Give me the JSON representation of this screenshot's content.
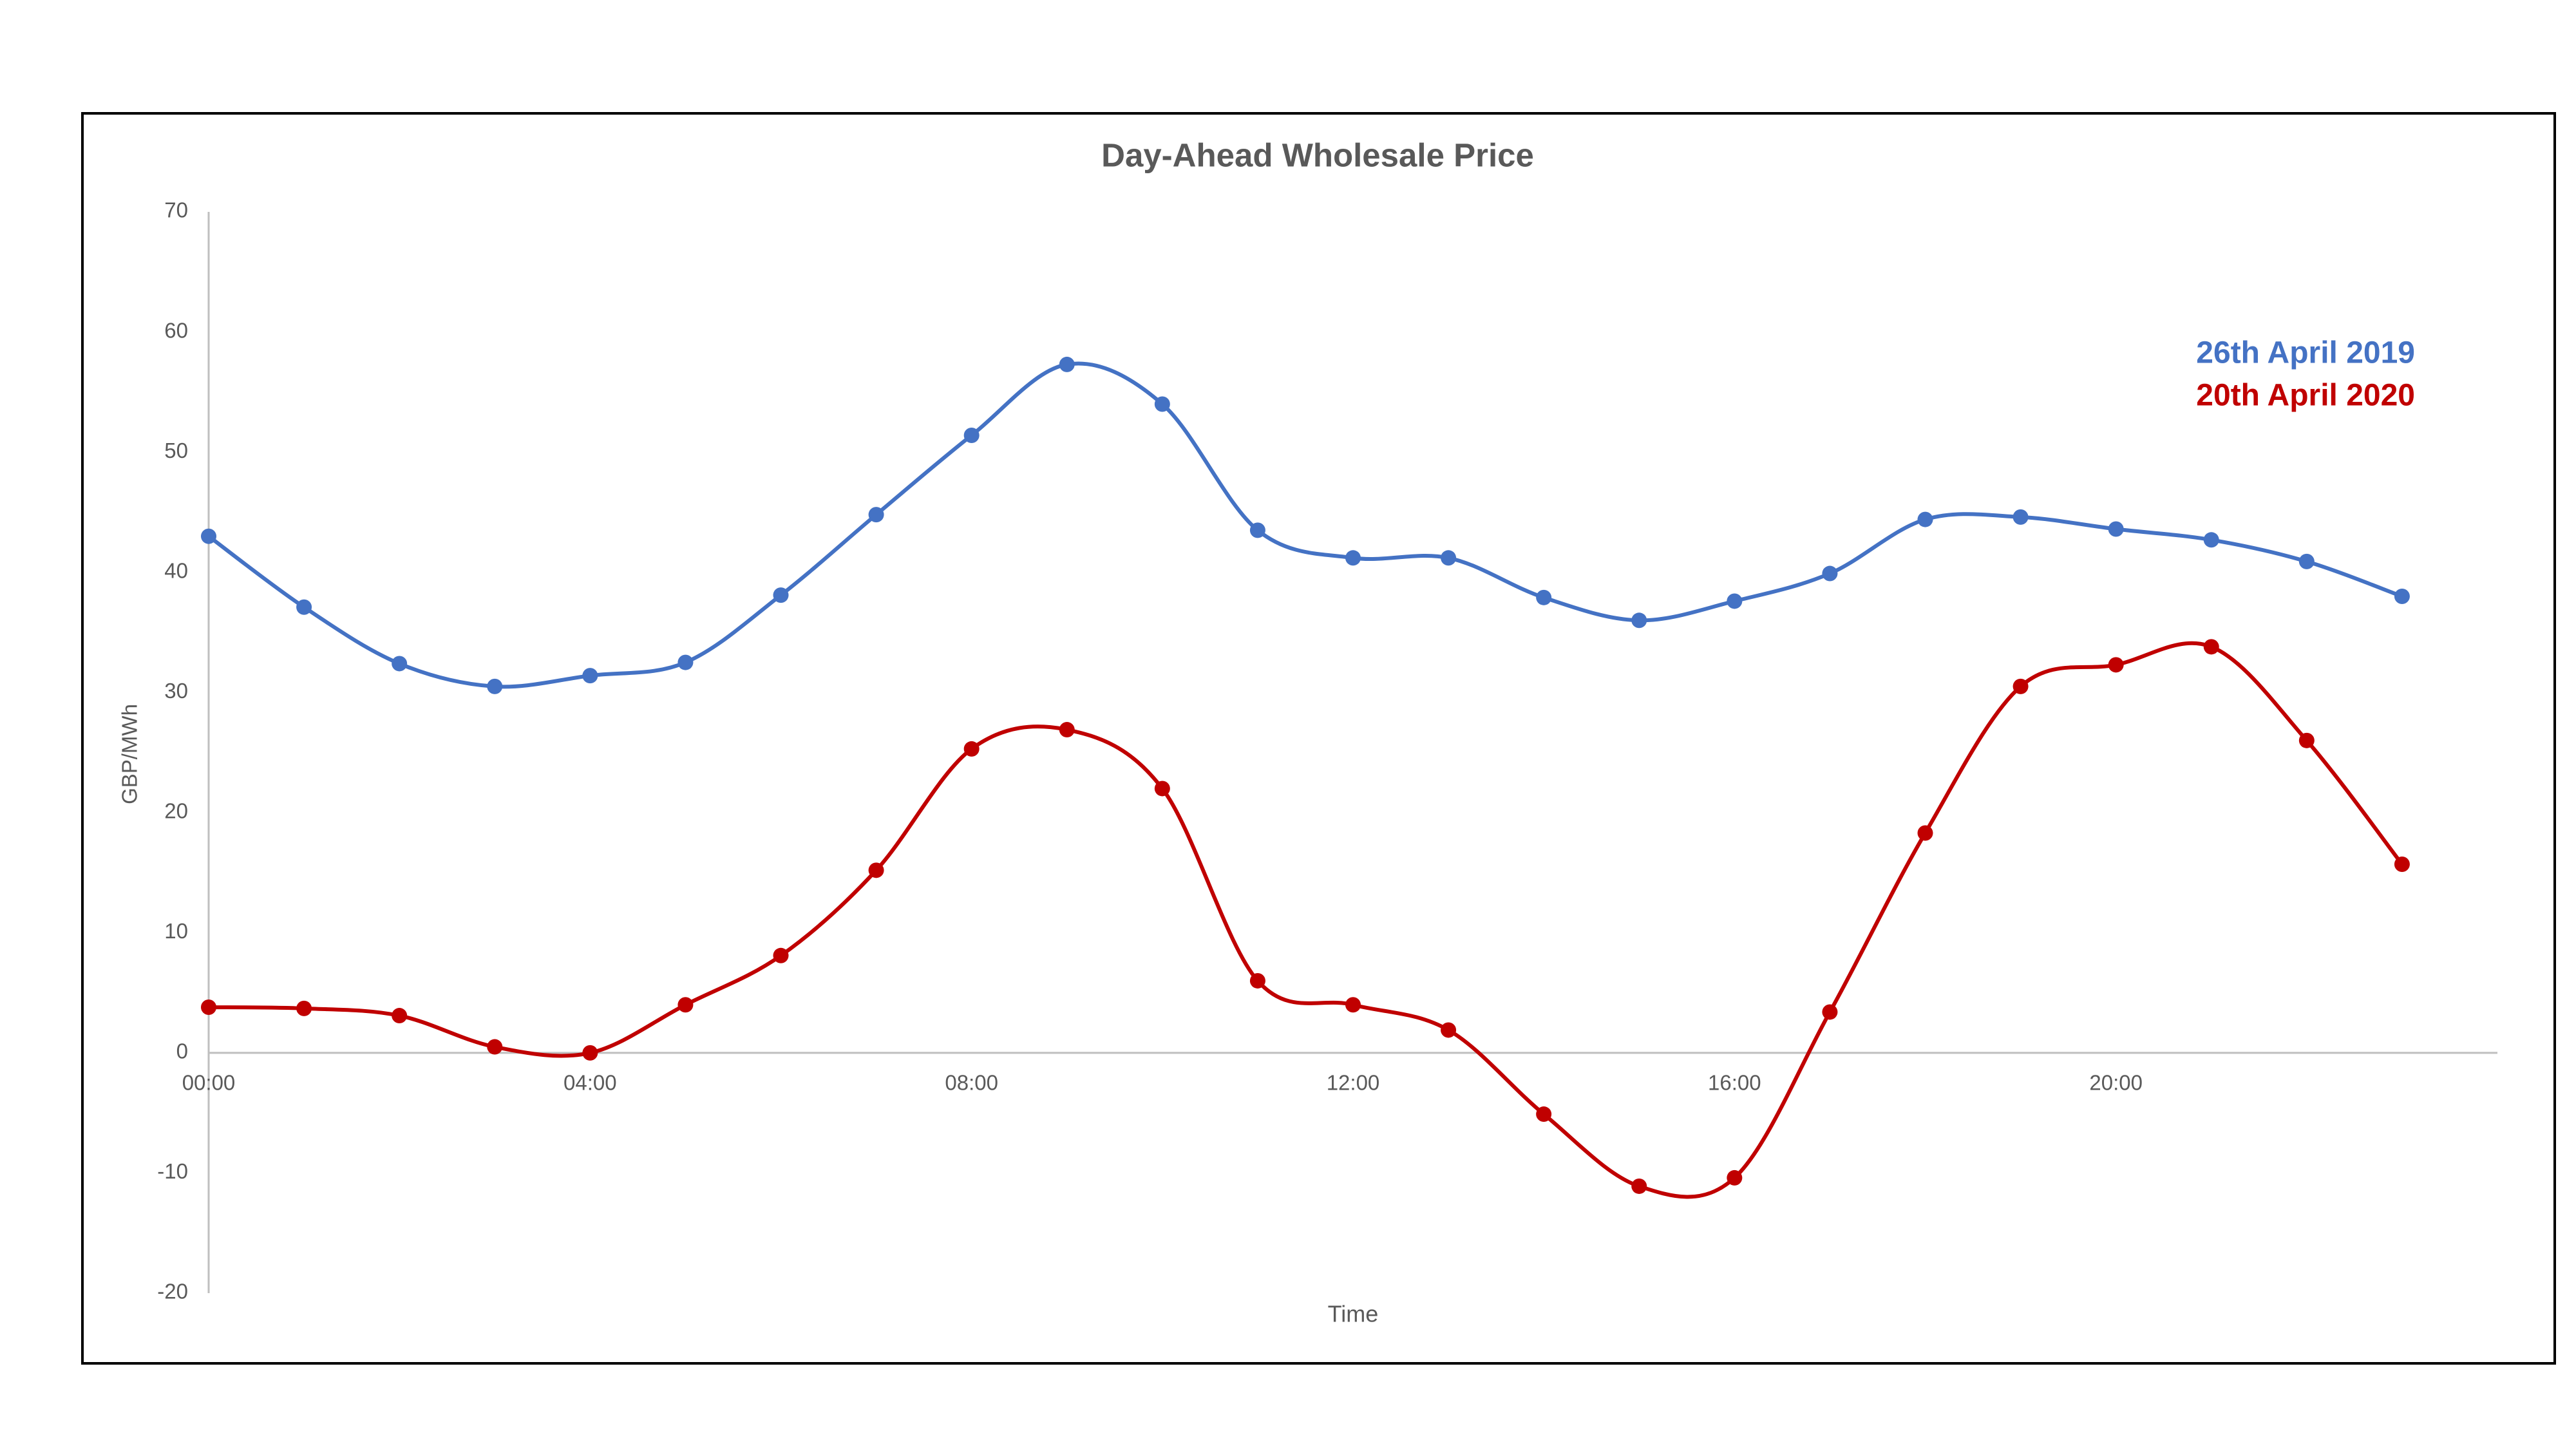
{
  "chart_data": {
    "type": "line",
    "title": "Day-Ahead Wholesale Price",
    "x_label": "Time",
    "y_label": "GBP/MWh",
    "x": [
      0,
      1,
      2,
      3,
      4,
      5,
      6,
      7,
      8,
      9,
      10,
      11,
      12,
      13,
      14,
      15,
      16,
      17,
      18,
      19,
      20,
      21,
      22,
      23
    ],
    "xlim": [
      0,
      24
    ],
    "xticks": [
      {
        "value": 0,
        "label": "00:00"
      },
      {
        "value": 4,
        "label": "04:00"
      },
      {
        "value": 8,
        "label": "08:00"
      },
      {
        "value": 12,
        "label": "12:00"
      },
      {
        "value": 16,
        "label": "16:00"
      },
      {
        "value": 20,
        "label": "20:00"
      }
    ],
    "ylim": [
      -20,
      70
    ],
    "yticks": [
      -20,
      -10,
      0,
      10,
      20,
      30,
      40,
      50,
      60,
      70
    ],
    "grid": false,
    "smooth": true,
    "legend": "top-right",
    "series": [
      {
        "name": "26th April 2019",
        "color": "#4472c4",
        "values": [
          43,
          37.1,
          32.4,
          30.5,
          31.4,
          32.5,
          38.1,
          44.8,
          51.4,
          57.3,
          54.0,
          43.5,
          41.2,
          41.2,
          37.9,
          36.0,
          37.6,
          39.9,
          44.4,
          44.6,
          43.6,
          42.7,
          40.9,
          38.0
        ]
      },
      {
        "name": "20th April 2020",
        "color": "#c00000",
        "values": [
          3.8,
          3.7,
          3.1,
          0.5,
          0,
          4.0,
          8.1,
          15.2,
          25.3,
          26.9,
          22.0,
          6.0,
          4.0,
          1.9,
          -5.1,
          -11.1,
          -10.4,
          3.4,
          18.3,
          30.5,
          32.3,
          33.8,
          26.0,
          15.7
        ]
      }
    ]
  }
}
